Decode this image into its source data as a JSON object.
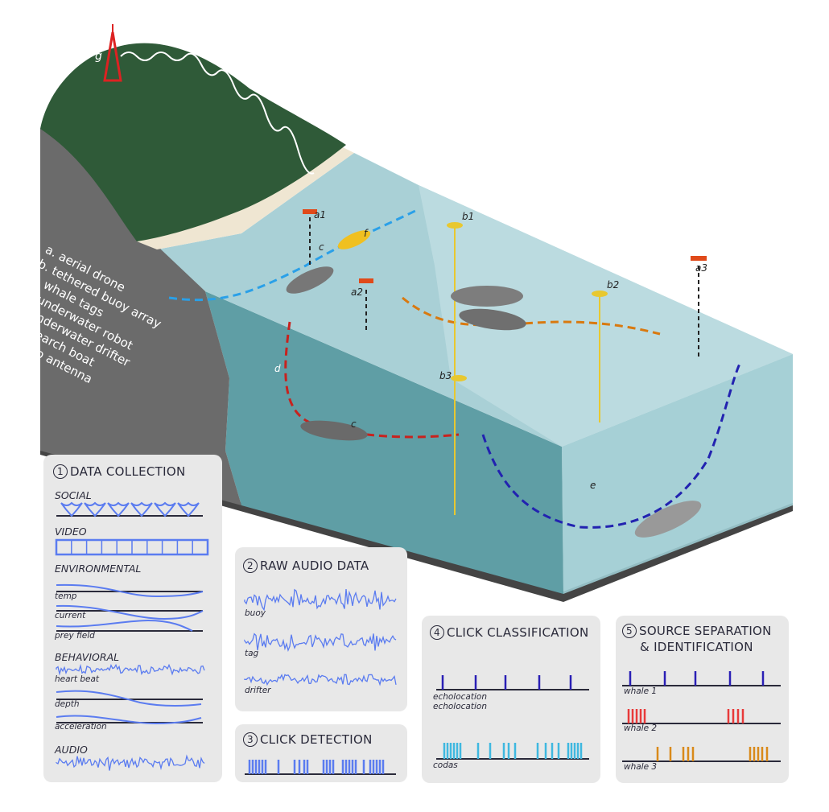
{
  "legend": [
    "a. aerial drone",
    "b. tethered buoy array",
    "c. whale tags",
    "d. underwater robot",
    "e. underwater drifter",
    "f. research boat",
    "g. radio antenna"
  ],
  "scene_labels": {
    "g": "g",
    "a1": "a1",
    "a2": "a2",
    "a3": "a3",
    "b1": "b1",
    "b2": "b2",
    "b3": "b3",
    "c_top": "c",
    "c_bottom": "c",
    "d": "d",
    "e": "e",
    "f": "f"
  },
  "panels": {
    "data_collection": {
      "number": "1",
      "title": "DATA COLLECTION",
      "social": "SOCIAL",
      "video": "VIDEO",
      "environmental": "ENVIRONMENTAL",
      "temp": "temp",
      "current": "current",
      "prey_field": "prey field",
      "behavioral": "BEHAVIORAL",
      "heart_beat": "heart beat",
      "depth": "depth",
      "acceleration": "acceleration",
      "audio": "AUDIO"
    },
    "raw_audio": {
      "number": "2",
      "title": "RAW AUDIO DATA",
      "buoy": "buoy",
      "tag": "tag",
      "drifter": "drifter"
    },
    "click_detection": {
      "number": "3",
      "title": "CLICK DETECTION"
    },
    "click_classification": {
      "number": "4",
      "title": "CLICK CLASSIFICATION",
      "echo1": "echolocation",
      "echo2": "echolocation",
      "codas": "codas"
    },
    "source_separation": {
      "number": "5",
      "title_line1": "SOURCE SEPARATION",
      "title_line2": "& IDENTIFICATION",
      "whale1": "whale 1",
      "whale2": "whale 2",
      "whale3": "whale 3"
    }
  },
  "colors": {
    "signal_blue": "#5b7cf0",
    "echolocation": "#2a1fb5",
    "codas": "#3fb8e0",
    "whale2": "#e83a3a",
    "whale3": "#d98a1a",
    "panel_bg": "#e8e8e8",
    "ink": "#2a2a3a"
  }
}
